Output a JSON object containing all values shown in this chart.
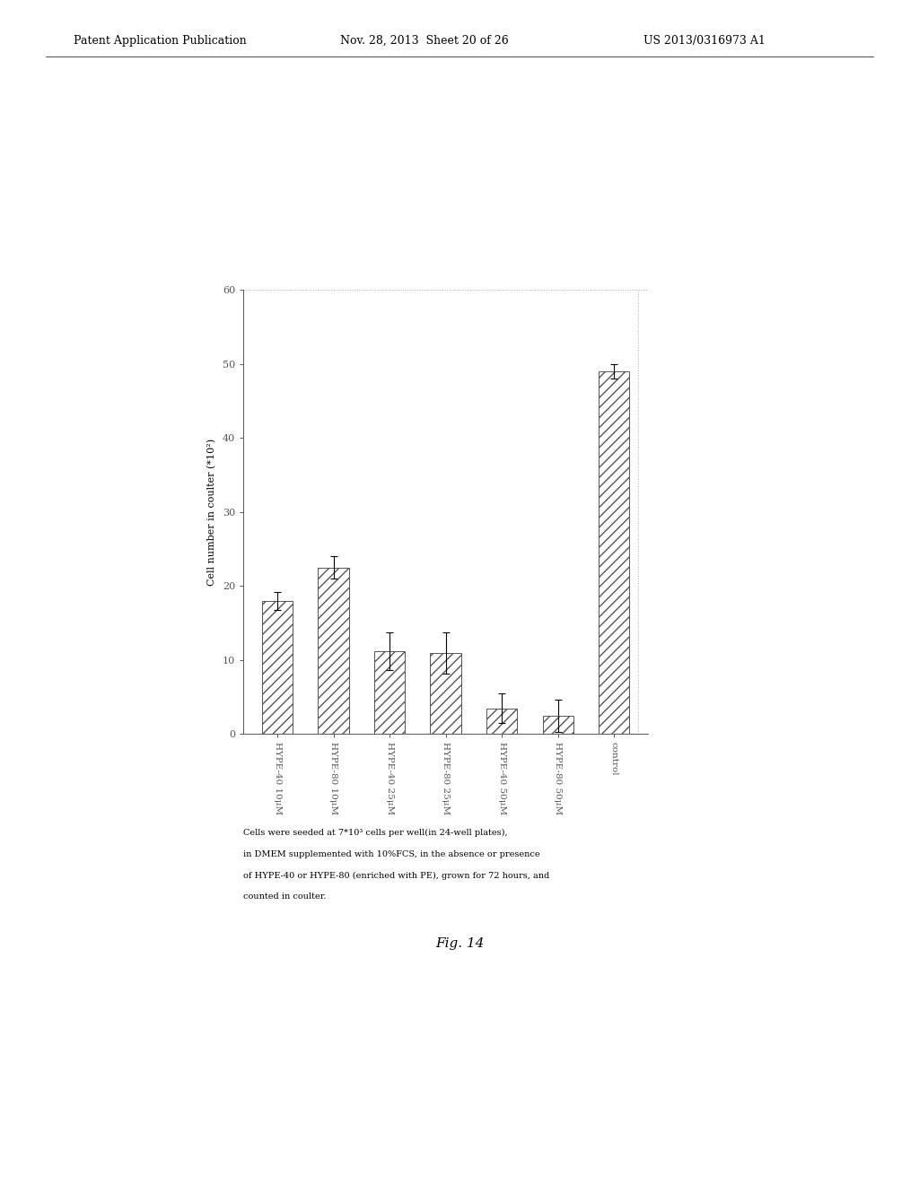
{
  "categories": [
    "HYPE-40 10μM",
    "HYPE-80 10μM",
    "HYPE-40 25μM",
    "HYPE-80 25μM",
    "HYPE-40 50μM",
    "HYPE-80 50μM",
    "control"
  ],
  "values": [
    18.0,
    22.5,
    11.2,
    11.0,
    3.5,
    2.5,
    49.0
  ],
  "errors": [
    1.2,
    1.5,
    2.5,
    2.8,
    2.0,
    2.2,
    1.0
  ],
  "hatch": "///",
  "ylabel": "Cell number in coulter (*10²)",
  "ylim": [
    0,
    60
  ],
  "yticks": [
    0,
    10,
    20,
    30,
    40,
    50,
    60
  ],
  "figsize": [
    10.24,
    13.2
  ],
  "dpi": 100,
  "caption_line1": "Cells were seeded at 7*10³ cells per well(in 24-well plates),",
  "caption_line2": "in DMEM supplemented with 10%FCS, in the absence or presence",
  "caption_line3": "of HYPE-40 or HYPE-80 (enriched with PE), grown for 72 hours, and",
  "caption_line4": "counted in coulter.",
  "fig_label": "Fig. 14",
  "header_left": "Patent Application Publication",
  "header_mid": "Nov. 28, 2013  Sheet 20 of 26",
  "header_right": "US 2013/0316973 A1"
}
